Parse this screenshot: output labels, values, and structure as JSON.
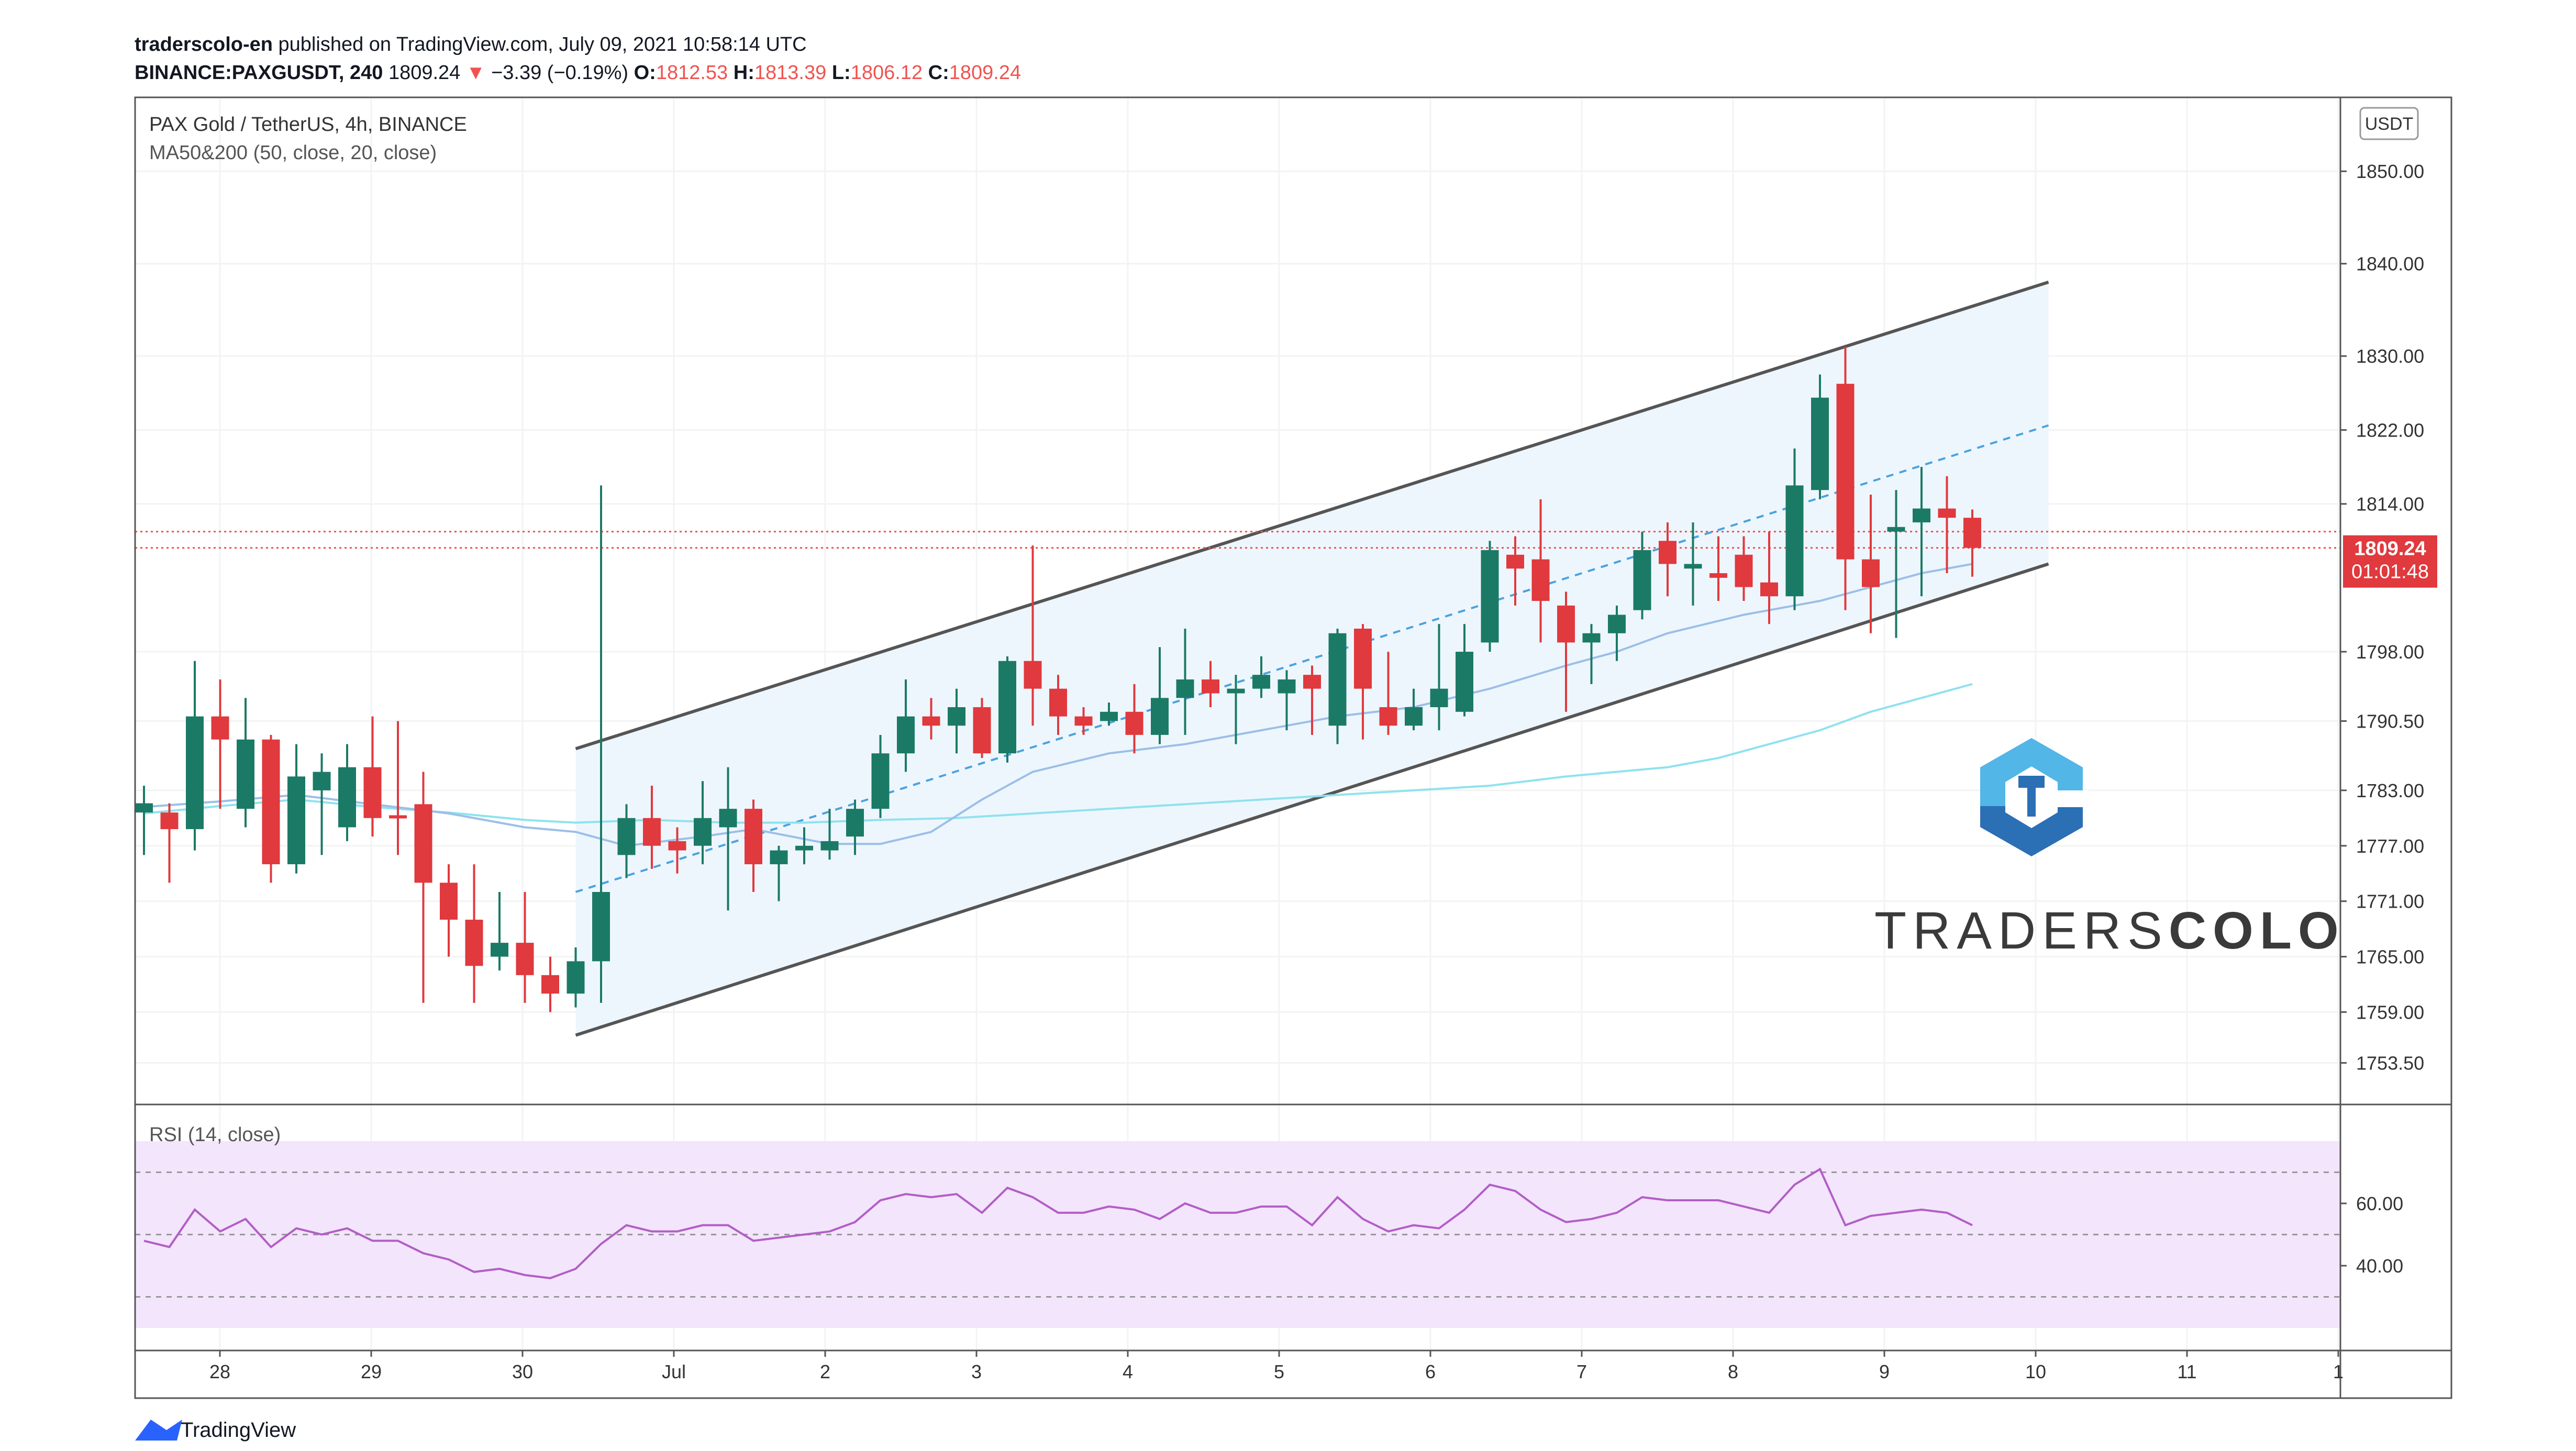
{
  "header": {
    "publisher": "traderscolo-en",
    "published_text": "published on TradingView.com, July 09, 2021 10:58:14 UTC",
    "symbol": "BINANCE:PAXGUSDT, 240",
    "last": "1809.24",
    "change_arrow": "▼",
    "change": "−3.39 (−0.19%)",
    "o_label": "O:",
    "o_value": "1812.53",
    "h_label": "H:",
    "h_value": "1813.39",
    "l_label": "L:",
    "l_value": "1806.12",
    "c_label": "C:",
    "c_value": "1809.24"
  },
  "legend": {
    "title": "PAX Gold / TetherUS, 4h, BINANCE",
    "indicator": "MA50&200 (50, close, 20, close)",
    "rsi": "RSI (14, close)"
  },
  "price_axis": {
    "currency": "USDT",
    "ticks": [
      "1850.00",
      "1840.00",
      "1830.00",
      "1822.00",
      "1814.00",
      "1798.00",
      "1790.50",
      "1783.00",
      "1777.00",
      "1771.00",
      "1765.00",
      "1759.00",
      "1753.50"
    ],
    "last_price_label": "1809.24",
    "countdown_label": "01:01:48"
  },
  "rsi_axis": {
    "ticks": [
      "60.00",
      "40.00"
    ]
  },
  "time_axis": {
    "labels": [
      "28",
      "29",
      "30",
      "Jul",
      "2",
      "3",
      "4",
      "5",
      "6",
      "7",
      "8",
      "9",
      "10",
      "11",
      "1"
    ]
  },
  "watermark": {
    "brand_light": "TRADERS",
    "brand_bold": "COLO"
  },
  "footer": {
    "brand": "TradingView"
  },
  "colors": {
    "up": "#1b7a66",
    "down": "#e0393e",
    "ma_fast": "#9bbfe8",
    "ma_slow": "#8fe2ef",
    "channel_fill": "#eef6fd",
    "channel_line": "#555555",
    "rsi_line": "#b25ec6",
    "rsi_band": "#f3e5fc",
    "logo_blue": "#2b6fb5",
    "logo_light": "#52b6e6"
  },
  "chart_data": {
    "type": "candlestick",
    "title": "PAX Gold / TetherUS, 4h, BINANCE",
    "interval": "4h",
    "x_start": "2021-06-27 12:00",
    "ylim": [
      1749,
      1858
    ],
    "rsi_ylim": [
      20,
      80
    ],
    "candles": [
      [
        "1780.6",
        "1781.6",
        "1776.0",
        "1783.5"
      ],
      [
        1780.6,
        1778.8,
        1773.0,
        1781.6
      ],
      [
        1778.8,
        1791.0,
        1776.5,
        1797.0
      ],
      [
        1791.0,
        1788.5,
        1781.0,
        1795.0
      ],
      [
        1781.0,
        1788.5,
        1779.0,
        1793.0
      ],
      [
        1788.5,
        1775.0,
        1773.0,
        1789.0
      ],
      [
        1775.0,
        1784.5,
        1774.0,
        1788.0
      ],
      [
        1783.0,
        1785.0,
        1776.0,
        1787.0
      ],
      [
        1779.0,
        1785.5,
        1777.5,
        1788.0
      ],
      [
        1785.5,
        1780.0,
        1778.0,
        1791.0
      ],
      [
        1780.3,
        1780.0,
        1776.0,
        1790.5
      ],
      [
        1781.5,
        1773.0,
        1760.0,
        1785.0
      ],
      [
        1773.0,
        1769.0,
        1765.0,
        1775.0
      ],
      [
        1769.0,
        1764.0,
        1760.0,
        1775.0
      ],
      [
        1765.0,
        1766.5,
        1763.5,
        1772.0
      ],
      [
        1766.5,
        1763.0,
        1760.0,
        1772.0
      ],
      [
        1763.0,
        1761.0,
        1759.0,
        1765.0
      ],
      [
        1761.0,
        1764.5,
        1759.5,
        1766.0
      ],
      [
        1764.5,
        1772.0,
        1760.0,
        1816.0
      ],
      [
        1776.0,
        1780.0,
        1773.5,
        1781.5
      ],
      [
        1780.0,
        1777.0,
        1774.5,
        1783.5
      ],
      [
        1777.5,
        1776.5,
        1774.0,
        1779.0
      ],
      [
        1777.0,
        1780.0,
        1775.0,
        1784.0
      ],
      [
        1779.0,
        1781.0,
        1770.0,
        1785.5
      ],
      [
        1781.0,
        1775.0,
        1772.0,
        1782.0
      ],
      [
        1775.0,
        1776.5,
        1771.0,
        1777.0
      ],
      [
        1776.5,
        1777.0,
        1775.0,
        1779.0
      ],
      [
        1776.5,
        1777.5,
        1775.5,
        1781.0
      ],
      [
        1778.0,
        1781.0,
        1776.0,
        1782.0
      ],
      [
        1781.0,
        1787.0,
        1780.0,
        1789.0
      ],
      [
        1787.0,
        1791.0,
        1785.0,
        1795.0
      ],
      [
        1791.0,
        1790.0,
        1788.5,
        1793.0
      ],
      [
        1790.0,
        1792.0,
        1787.0,
        1794.0
      ],
      [
        1792.0,
        1787.0,
        1786.5,
        1793.0
      ],
      [
        1787.0,
        1797.0,
        1786.0,
        1797.5
      ],
      [
        1797.0,
        1794.0,
        1790.0,
        1809.5
      ],
      [
        1794.0,
        1791.0,
        1789.0,
        1795.5
      ],
      [
        1791.0,
        1790.0,
        1789.0,
        1792.0
      ],
      [
        1790.5,
        1791.5,
        1790.0,
        1792.5
      ],
      [
        1791.5,
        1789.0,
        1787.0,
        1794.5
      ],
      [
        1789.0,
        1793.0,
        1788.0,
        1798.5
      ],
      [
        1793.0,
        1795.0,
        1789.0,
        1800.5
      ],
      [
        1795.0,
        1793.5,
        1792.0,
        1797.0
      ],
      [
        1793.5,
        1794.0,
        1788.0,
        1795.5
      ],
      [
        1794.0,
        1795.5,
        1793.0,
        1797.5
      ],
      [
        1793.5,
        1795.0,
        1789.5,
        1796.0
      ],
      [
        1795.5,
        1794.0,
        1789.0,
        1796.5
      ],
      [
        1790.0,
        1800.0,
        1788.0,
        1800.5
      ],
      [
        1800.5,
        1794.0,
        1788.5,
        1801.0
      ],
      [
        1792.0,
        1790.0,
        1789.0,
        1798.0
      ],
      [
        1790.0,
        1792.0,
        1789.5,
        1794.0
      ],
      [
        1792.0,
        1794.0,
        1789.5,
        1801.0
      ],
      [
        1791.5,
        1798.0,
        1791.0,
        1801.0
      ],
      [
        1799.0,
        1809.0,
        1798.0,
        1810.0
      ],
      [
        1808.5,
        1807.0,
        1803.0,
        1810.5
      ],
      [
        1808.0,
        1803.5,
        1799.0,
        1814.5
      ],
      [
        1803.0,
        1799.0,
        1791.5,
        1804.5
      ],
      [
        1799.0,
        1800.0,
        1794.5,
        1801.0
      ],
      [
        1800.0,
        1802.0,
        1797.0,
        1803.0
      ],
      [
        1802.5,
        1809.0,
        1801.5,
        1811.0
      ],
      [
        1810.0,
        1807.5,
        1804.0,
        1812.0
      ],
      [
        1807.0,
        1807.5,
        1803.0,
        1812.0
      ],
      [
        1806.5,
        1806.0,
        1803.5,
        1810.5
      ],
      [
        1808.5,
        1805.0,
        1803.5,
        1810.5
      ],
      [
        1805.5,
        1804.0,
        1801.0,
        1811.0
      ],
      [
        1804.0,
        1816.0,
        1802.5,
        1820.0
      ],
      [
        1815.5,
        1825.5,
        1814.5,
        1828.0
      ],
      [
        1827.0,
        1808.0,
        1802.5,
        1831.0
      ],
      [
        1808.0,
        1805.0,
        1800.0,
        1815.0
      ],
      [
        1811.0,
        1811.5,
        1799.5,
        1815.5
      ],
      [
        1812.0,
        1813.5,
        1804.0,
        1818.0
      ],
      [
        1813.5,
        1812.5,
        1806.5,
        1817.0
      ],
      [
        1812.5,
        1809.24,
        1806.12,
        1813.39
      ]
    ],
    "ma50": [
      [
        0,
        1781.2
      ],
      [
        3,
        1781.8
      ],
      [
        6,
        1782.5
      ],
      [
        9,
        1781.5
      ],
      [
        12,
        1780.5
      ],
      [
        15,
        1779.0
      ],
      [
        17,
        1778.5
      ],
      [
        19,
        1777.0
      ],
      [
        22,
        1778.0
      ],
      [
        24,
        1778.8
      ],
      [
        27,
        1777.2
      ],
      [
        29,
        1777.2
      ],
      [
        31,
        1778.5
      ],
      [
        33,
        1782.0
      ],
      [
        35,
        1785.0
      ],
      [
        38,
        1787.0
      ],
      [
        41,
        1788.0
      ],
      [
        44,
        1789.5
      ],
      [
        47,
        1791.0
      ],
      [
        50,
        1792.0
      ],
      [
        53,
        1794.0
      ],
      [
        56,
        1796.5
      ],
      [
        58,
        1798.0
      ],
      [
        60,
        1800.0
      ],
      [
        63,
        1802.0
      ],
      [
        66,
        1803.5
      ],
      [
        68,
        1805.0
      ],
      [
        70,
        1806.5
      ],
      [
        72,
        1807.5
      ]
    ],
    "ma200": [
      [
        0,
        1780.5
      ],
      [
        3,
        1781.3
      ],
      [
        6,
        1782.0
      ],
      [
        9,
        1781.2
      ],
      [
        12,
        1780.6
      ],
      [
        15,
        1779.8
      ],
      [
        17,
        1779.5
      ],
      [
        20,
        1779.8
      ],
      [
        23,
        1779.5
      ],
      [
        26,
        1779.5
      ],
      [
        29,
        1779.8
      ],
      [
        32,
        1780.0
      ],
      [
        35,
        1780.5
      ],
      [
        38,
        1781.0
      ],
      [
        41,
        1781.5
      ],
      [
        44,
        1782.0
      ],
      [
        47,
        1782.5
      ],
      [
        50,
        1783.0
      ],
      [
        53,
        1783.5
      ],
      [
        56,
        1784.5
      ],
      [
        58,
        1785.0
      ],
      [
        60,
        1785.5
      ],
      [
        62,
        1786.5
      ],
      [
        64,
        1788.0
      ],
      [
        66,
        1789.5
      ],
      [
        68,
        1791.5
      ],
      [
        70,
        1793.0
      ],
      [
        72,
        1794.5
      ]
    ],
    "rsi": [
      48,
      46,
      58,
      51,
      55,
      46,
      52,
      50,
      52,
      48,
      48,
      44,
      42,
      38,
      39,
      37,
      36,
      39,
      47,
      53,
      51,
      51,
      53,
      53,
      48,
      49,
      50,
      51,
      54,
      61,
      63,
      62,
      63,
      57,
      65,
      62,
      57,
      57,
      59,
      58,
      55,
      60,
      57,
      57,
      59,
      59,
      53,
      62,
      55,
      51,
      53,
      52,
      58,
      66,
      64,
      58,
      54,
      55,
      57,
      62,
      61,
      61,
      61,
      59,
      57,
      66,
      71,
      53,
      56,
      57,
      58,
      57,
      53
    ],
    "rsi_band": [
      30,
      70
    ],
    "rsi_mid": 50,
    "channel": {
      "lower": [
        [
          17,
          1756.5
        ],
        [
          75,
          1807.5
        ]
      ],
      "upper": [
        [
          17,
          1787.5
        ],
        [
          75,
          1838.0
        ]
      ],
      "mid": [
        [
          17,
          1772.0
        ],
        [
          75,
          1822.5
        ]
      ]
    },
    "hlines": [
      1811.0,
      1809.24
    ],
    "x_labels": [
      "28",
      "29",
      "30",
      "Jul",
      "2",
      "3",
      "4",
      "5",
      "6",
      "7",
      "8",
      "9",
      "10",
      "11",
      "1"
    ]
  }
}
